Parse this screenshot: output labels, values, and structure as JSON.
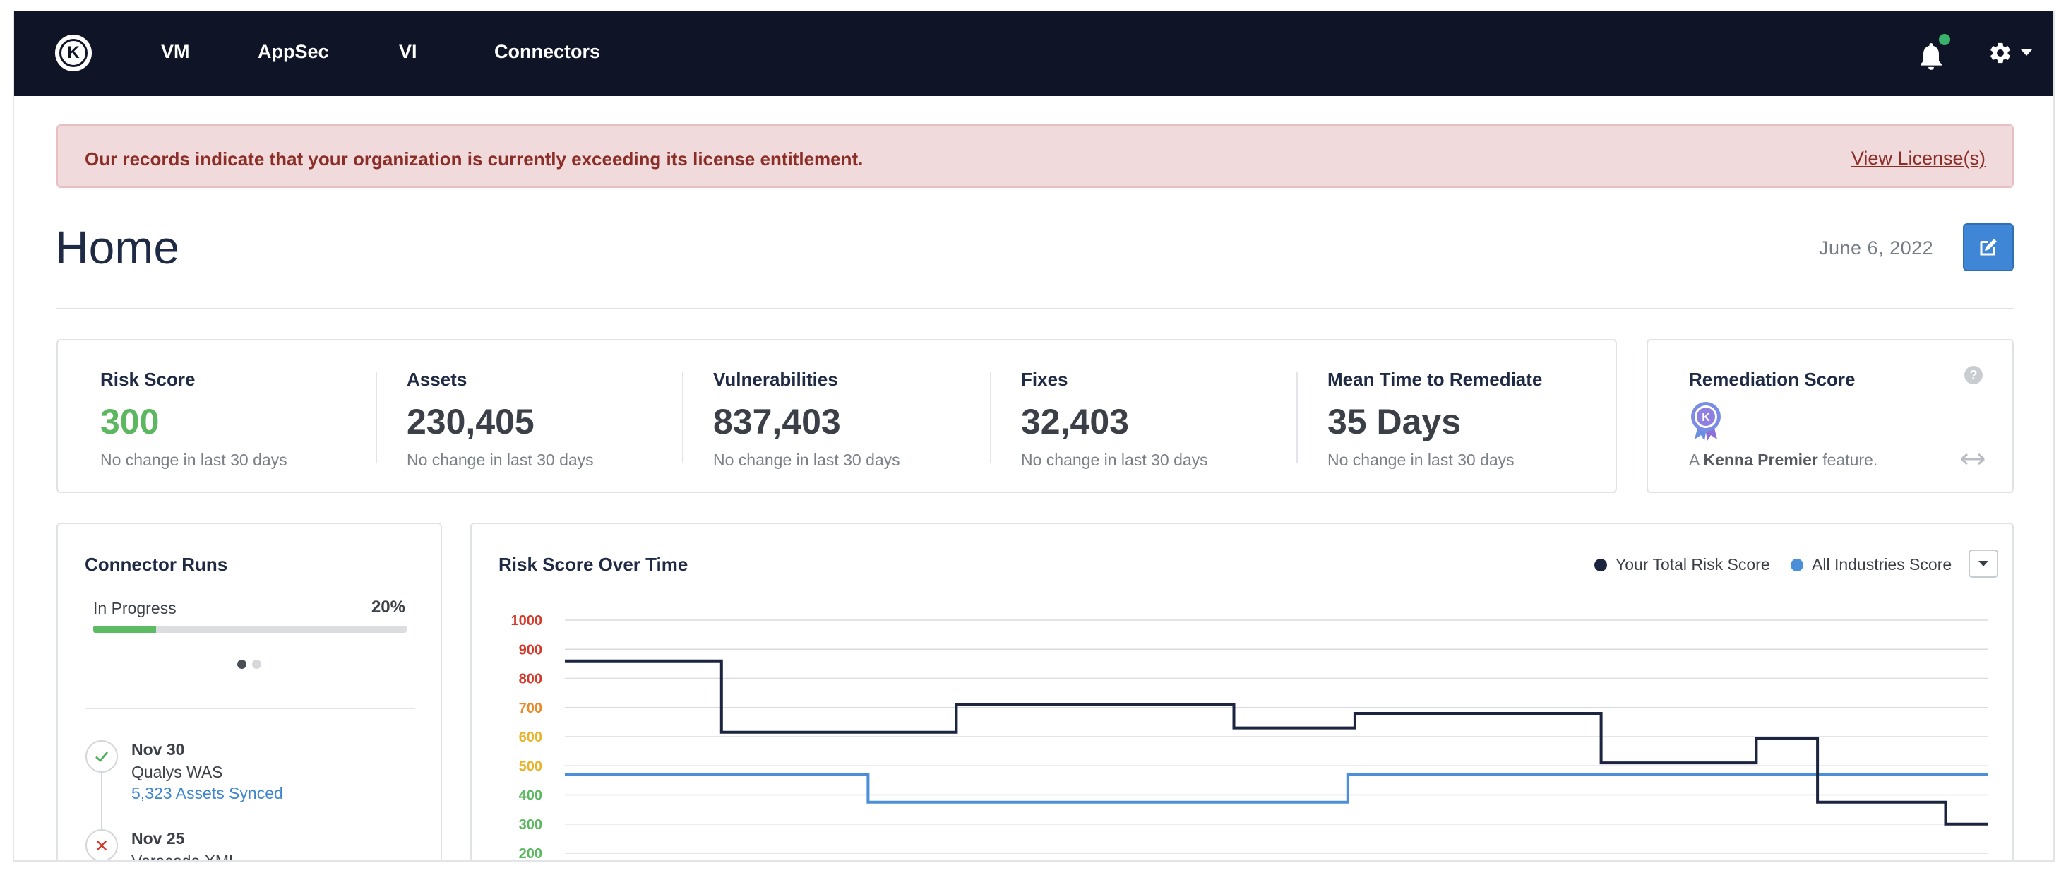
{
  "nav": {
    "logo_letter": "K",
    "items": [
      {
        "label": "VM"
      },
      {
        "label": "AppSec"
      },
      {
        "label": "VI"
      },
      {
        "label": "Connectors"
      }
    ],
    "icons": [
      "bell-icon",
      "gear-icon"
    ]
  },
  "alert": {
    "message": "Our records indicate that your organization is currently exceeding its license entitlement.",
    "link_label": "View License(s)"
  },
  "header": {
    "title": "Home",
    "date": "June 6, 2022"
  },
  "stats": [
    {
      "label": "Risk Score",
      "value": "300",
      "sub": "No change in last 30 days",
      "color": "#5cb860"
    },
    {
      "label": "Assets",
      "value": "230,405",
      "sub": "No change in last 30 days"
    },
    {
      "label": "Vulnerabilities",
      "value": "837,403",
      "sub": "No change in last 30 days"
    },
    {
      "label": "Fixes",
      "value": "32,403",
      "sub": "No change in last 30 days"
    },
    {
      "label": "Mean Time to Remediate",
      "value": "35 Days",
      "sub": "No change in last 30 days"
    }
  ],
  "remediation": {
    "title": "Remediation Score",
    "sub_prefix": "A ",
    "sub_bold": "Kenna Premier",
    "sub_suffix": " feature.",
    "help": "?"
  },
  "connector_runs": {
    "title": "Connector Runs",
    "progress_label": "In Progress",
    "progress_pct_text": "20%",
    "progress_fraction": 0.2,
    "pages": 2,
    "active_page": 0,
    "runs": [
      {
        "date": "Nov 30",
        "name": "Qualys WAS",
        "detail": "5,323 Assets Synced",
        "status": "success"
      },
      {
        "date": "Nov 25",
        "name": "Veracode XML",
        "detail": "",
        "status": "failed"
      }
    ]
  },
  "chart": {
    "title": "Risk Score Over Time",
    "legend": [
      {
        "name": "Your Total Risk Score",
        "color": "#1b2540"
      },
      {
        "name": "All Industries Score",
        "color": "#4a8fd8"
      }
    ]
  },
  "chart_data": {
    "type": "line",
    "title": "Risk Score Over Time",
    "step": true,
    "ylim": [
      200,
      1000
    ],
    "yticks": [
      {
        "value": 1000,
        "label": "1000",
        "color": "#d33a2c"
      },
      {
        "value": 900,
        "label": "900",
        "color": "#d33a2c"
      },
      {
        "value": 800,
        "label": "800",
        "color": "#d33a2c"
      },
      {
        "value": 700,
        "label": "700",
        "color": "#e8892b"
      },
      {
        "value": 600,
        "label": "600",
        "color": "#e8b32b"
      },
      {
        "value": 500,
        "label": "500",
        "color": "#e8b32b"
      },
      {
        "value": 400,
        "label": "400",
        "color": "#5cb860"
      },
      {
        "value": 300,
        "label": "300",
        "color": "#5cb860"
      },
      {
        "value": 200,
        "label": "200",
        "color": "#5cb860"
      }
    ],
    "xlim": [
      0,
      100
    ],
    "grid": true,
    "legend_position": "top-right",
    "series": [
      {
        "name": "Your Total Risk Score",
        "color": "#1b2540",
        "points": [
          [
            0,
            860
          ],
          [
            11,
            860
          ],
          [
            11,
            615
          ],
          [
            27.5,
            615
          ],
          [
            27.5,
            710
          ],
          [
            47,
            710
          ],
          [
            47,
            630
          ],
          [
            55.5,
            630
          ],
          [
            55.5,
            680
          ],
          [
            72.8,
            680
          ],
          [
            72.8,
            510
          ],
          [
            83.7,
            510
          ],
          [
            83.7,
            595
          ],
          [
            88,
            595
          ],
          [
            88,
            375
          ],
          [
            97,
            375
          ],
          [
            97,
            300
          ],
          [
            100,
            300
          ]
        ]
      },
      {
        "name": "All Industries Score",
        "color": "#4a8fd8",
        "points": [
          [
            0,
            470
          ],
          [
            21.3,
            470
          ],
          [
            21.3,
            375
          ],
          [
            55,
            375
          ],
          [
            55,
            470
          ],
          [
            100,
            470
          ]
        ]
      }
    ]
  }
}
